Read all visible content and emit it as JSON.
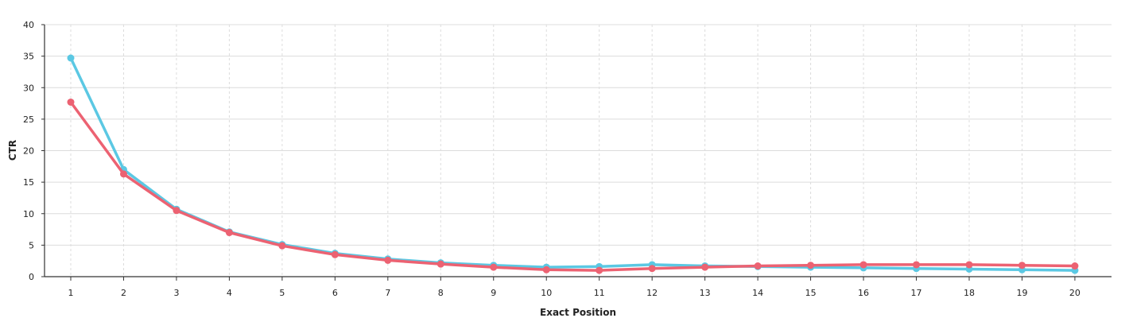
{
  "chart_data": {
    "type": "line",
    "title": "",
    "xlabel": "Exact Position",
    "ylabel": "CTR",
    "x": [
      1,
      2,
      3,
      4,
      5,
      6,
      7,
      8,
      9,
      10,
      11,
      12,
      13,
      14,
      15,
      16,
      17,
      18,
      19,
      20
    ],
    "x_ticks": [
      "1",
      "2",
      "3",
      "4",
      "5",
      "6",
      "7",
      "8",
      "9",
      "10",
      "11",
      "12",
      "13",
      "14",
      "15",
      "16",
      "17",
      "18",
      "19",
      "20"
    ],
    "ylim": [
      0,
      40
    ],
    "y_ticks": [
      0,
      5,
      10,
      15,
      20,
      25,
      30,
      35,
      40
    ],
    "y_tick_labels": [
      "0",
      "5",
      "10",
      "15",
      "20",
      "25",
      "30",
      "35",
      "40"
    ],
    "grid": true,
    "legend": "none",
    "series": [
      {
        "color": "#5bc8e3",
        "values": [
          34.7,
          17.0,
          10.7,
          7.1,
          5.1,
          3.7,
          2.8,
          2.2,
          1.8,
          1.5,
          1.6,
          1.9,
          1.7,
          1.6,
          1.5,
          1.4,
          1.3,
          1.2,
          1.1,
          1.0
        ]
      },
      {
        "color": "#ec6272",
        "values": [
          27.7,
          16.3,
          10.5,
          7.0,
          4.9,
          3.5,
          2.6,
          2.0,
          1.5,
          1.1,
          1.0,
          1.3,
          1.5,
          1.7,
          1.8,
          1.9,
          1.9,
          1.9,
          1.8,
          1.7
        ]
      }
    ]
  }
}
